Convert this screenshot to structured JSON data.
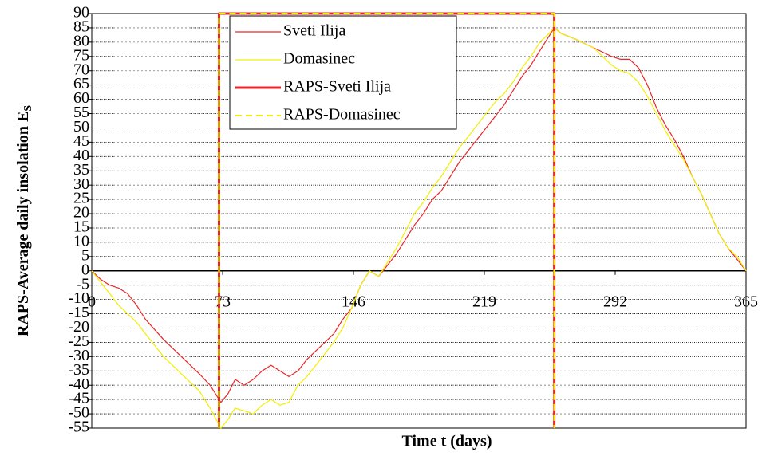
{
  "chart_data": {
    "type": "line",
    "y_label": "RAPS-Average daily insolation E",
    "y_label_subscript": "S",
    "x_label": "Time t (days)",
    "xlim": [
      0,
      365
    ],
    "xticks": [
      0,
      73,
      146,
      219,
      292,
      365
    ],
    "ylim": [
      -55,
      90
    ],
    "yticks": [
      -55,
      -50,
      -45,
      -40,
      -35,
      -30,
      -25,
      -20,
      -15,
      -10,
      -5,
      0,
      5,
      10,
      15,
      20,
      25,
      30,
      35,
      40,
      45,
      50,
      55,
      60,
      65,
      70,
      75,
      80,
      85,
      90
    ],
    "grid": true,
    "x": [
      0,
      5,
      10,
      15,
      20,
      25,
      30,
      40,
      50,
      60,
      66,
      72,
      76,
      80,
      85,
      90,
      95,
      100,
      105,
      110,
      115,
      120,
      125,
      130,
      135,
      140,
      145,
      150,
      155,
      160,
      165,
      170,
      175,
      180,
      185,
      190,
      195,
      200,
      205,
      210,
      215,
      220,
      225,
      230,
      235,
      240,
      245,
      250,
      255,
      258,
      262,
      270,
      280,
      290,
      295,
      300,
      305,
      310,
      315,
      320,
      325,
      330,
      335,
      340,
      345,
      350,
      355,
      360,
      365
    ],
    "series": [
      {
        "name": "Sveti Ilija",
        "color": "#e8262a",
        "width": 1.2,
        "dash": false,
        "values": [
          0,
          -3,
          -5,
          -6,
          -8,
          -12,
          -17,
          -24,
          -30,
          -36,
          -40,
          -46,
          -43,
          -38,
          -40,
          -38,
          -35,
          -33,
          -35,
          -37,
          -35,
          -31,
          -28,
          -25,
          -22,
          -17,
          -13,
          -5,
          0,
          -2,
          2,
          6,
          11,
          16,
          20,
          25,
          28,
          33,
          38,
          42,
          46,
          50,
          54,
          58,
          63,
          68,
          72,
          77,
          82,
          85,
          83,
          81,
          78,
          75,
          74,
          74,
          71,
          65,
          57,
          51,
          46,
          40,
          33,
          27,
          20,
          13,
          8,
          4,
          0
        ]
      },
      {
        "name": "Domasinec",
        "color": "#f0f000",
        "width": 1.2,
        "dash": false,
        "values": [
          0,
          -4,
          -8,
          -12,
          -15,
          -18,
          -22,
          -30,
          -36,
          -42,
          -48,
          -55,
          -52,
          -48,
          -49,
          -50,
          -47,
          -45,
          -47,
          -46,
          -40,
          -37,
          -33,
          -29,
          -25,
          -20,
          -13,
          -5,
          0,
          -2,
          3,
          8,
          14,
          20,
          24,
          29,
          33,
          38,
          43,
          47,
          51,
          55,
          59,
          62,
          66,
          71,
          75,
          80,
          83,
          85,
          83,
          81,
          78,
          72,
          70,
          69,
          66,
          61,
          55,
          49,
          44,
          39,
          33,
          27,
          20,
          13,
          8,
          5,
          0
        ]
      },
      {
        "name": "RAPS-Sveti Ilija",
        "color": "#e8262a",
        "width": 3,
        "dash": false,
        "x": [
          71,
          71,
          258,
          258
        ],
        "values": [
          -55,
          90,
          90,
          -55
        ]
      },
      {
        "name": "RAPS-Domasinec",
        "color": "#f0f000",
        "width": 2,
        "dash": true,
        "x": [
          71,
          71,
          258,
          258
        ],
        "values": [
          -55,
          90,
          90,
          -55
        ]
      }
    ]
  }
}
